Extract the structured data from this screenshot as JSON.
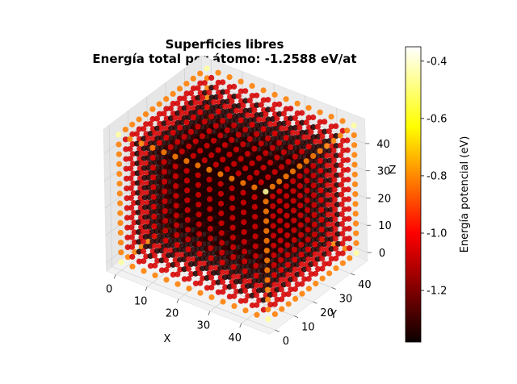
{
  "chart_data": {
    "type": "scatter",
    "projection": "3d",
    "title": "Superficies libres",
    "subtitle": "Energía total por átomo: -1.2588 eV/at",
    "xlabel": "X",
    "ylabel": "Y",
    "zlabel": "Z",
    "xlim": [
      0,
      45
    ],
    "ylim": [
      0,
      45
    ],
    "zlim": [
      0,
      45
    ],
    "xticks": [
      "0",
      "10",
      "20",
      "30",
      "40"
    ],
    "yticks": [
      "0",
      "10",
      "20",
      "30",
      "40"
    ],
    "zticks": [
      "0",
      "10",
      "20",
      "30",
      "40"
    ],
    "grid": true,
    "lattice": {
      "min": 0,
      "max": 45,
      "step": 3.6
    },
    "energy_levels": {
      "bulk": -1.35,
      "face": -1.08,
      "edge": -0.82,
      "corner": -0.45
    },
    "colormap": "hot",
    "colorbar": {
      "label": "Energía potencial (eV)",
      "min": -1.38,
      "max": -0.35,
      "ticks": [
        "-0.4",
        "-0.6",
        "-0.8",
        "-1.0",
        "-1.2"
      ],
      "tick_values": [
        -0.4,
        -0.6,
        -0.8,
        -1.0,
        -1.2
      ]
    }
  }
}
